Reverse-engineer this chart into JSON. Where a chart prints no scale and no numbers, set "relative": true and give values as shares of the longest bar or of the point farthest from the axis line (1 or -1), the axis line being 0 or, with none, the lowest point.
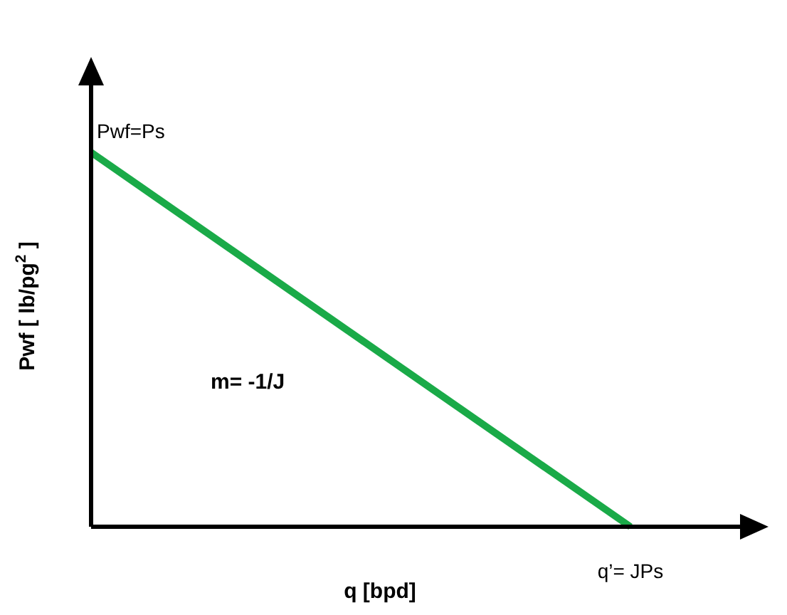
{
  "chart_data": {
    "type": "line",
    "relative": true,
    "categories": [
      null,
      null
    ],
    "series": [
      {
        "color": "#1aaa48",
        "values": [
          1,
          0
        ]
      }
    ],
    "xlabel": "q [bpd]",
    "ylabel": "Pwf [ lb/pg$^{2}$ ]",
    "annotations": [
      "Pwf=Ps",
      "m= -1/J",
      "q’= JPs"
    ],
    "marker": "none",
    "line_style": "solid",
    "grid": false
  }
}
